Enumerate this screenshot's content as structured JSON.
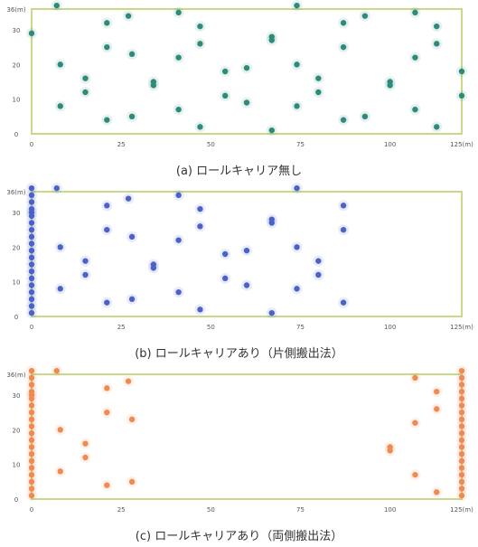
{
  "chart_data": [
    {
      "type": "scatter",
      "caption": "(a) ロールキャリア無し",
      "xlim": [
        0,
        120
      ],
      "ylim": [
        0,
        36
      ],
      "x_ticks": [
        "0",
        "25",
        "50",
        "75",
        "100",
        "125(m)"
      ],
      "y_ticks": [
        "0",
        "10",
        "20",
        "30",
        "36(m)"
      ],
      "frame_color": "#c9d98a",
      "marker_color": "#2e8b7a",
      "points": [
        [
          0,
          29
        ],
        [
          7,
          37
        ],
        [
          8,
          8
        ],
        [
          8,
          20
        ],
        [
          15,
          16
        ],
        [
          15,
          12
        ],
        [
          21,
          32
        ],
        [
          21,
          25
        ],
        [
          21,
          4
        ],
        [
          27,
          34
        ],
        [
          28,
          23
        ],
        [
          28,
          5
        ],
        [
          34,
          14
        ],
        [
          34,
          15
        ],
        [
          41,
          35
        ],
        [
          41,
          22
        ],
        [
          41,
          7
        ],
        [
          47,
          31
        ],
        [
          47,
          26
        ],
        [
          47,
          2
        ],
        [
          54,
          18
        ],
        [
          54,
          11
        ],
        [
          60,
          19
        ],
        [
          60,
          9
        ],
        [
          67,
          28
        ],
        [
          67,
          27
        ],
        [
          67,
          1
        ],
        [
          74,
          37
        ],
        [
          74,
          20
        ],
        [
          74,
          8
        ],
        [
          80,
          16
        ],
        [
          80,
          12
        ],
        [
          87,
          32
        ],
        [
          87,
          25
        ],
        [
          87,
          4
        ],
        [
          93,
          34
        ],
        [
          93,
          5
        ],
        [
          100,
          14
        ],
        [
          100,
          15
        ],
        [
          107,
          35
        ],
        [
          107,
          22
        ],
        [
          107,
          7
        ],
        [
          113,
          31
        ],
        [
          113,
          26
        ],
        [
          113,
          2
        ],
        [
          120,
          18
        ],
        [
          120,
          11
        ]
      ]
    },
    {
      "type": "scatter",
      "caption": "(b) ロールキャリアあり（片側搬出法）",
      "xlim": [
        0,
        120
      ],
      "ylim": [
        0,
        36
      ],
      "x_ticks": [
        "0",
        "25",
        "50",
        "75",
        "100",
        "125(m)"
      ],
      "y_ticks": [
        "0",
        "10",
        "20",
        "30",
        "36(m)"
      ],
      "frame_color": "#c9d98a",
      "marker_color": "#4b63c8",
      "stacked_points": [
        [
          0,
          1
        ],
        [
          0,
          3
        ],
        [
          0,
          5
        ],
        [
          0,
          7
        ],
        [
          0,
          9
        ],
        [
          0,
          11
        ],
        [
          0,
          13
        ],
        [
          0,
          15
        ],
        [
          0,
          17
        ],
        [
          0,
          19
        ],
        [
          0,
          21
        ],
        [
          0,
          23
        ],
        [
          0,
          25
        ],
        [
          0,
          27
        ],
        [
          0,
          29
        ],
        [
          0,
          30
        ],
        [
          0,
          31
        ],
        [
          0,
          33
        ],
        [
          0,
          35
        ],
        [
          0,
          37
        ]
      ],
      "points": [
        [
          7,
          37
        ],
        [
          8,
          8
        ],
        [
          8,
          20
        ],
        [
          15,
          16
        ],
        [
          15,
          12
        ],
        [
          21,
          32
        ],
        [
          21,
          25
        ],
        [
          21,
          4
        ],
        [
          27,
          34
        ],
        [
          28,
          23
        ],
        [
          28,
          5
        ],
        [
          34,
          14
        ],
        [
          34,
          15
        ],
        [
          41,
          35
        ],
        [
          41,
          22
        ],
        [
          41,
          7
        ],
        [
          47,
          31
        ],
        [
          47,
          26
        ],
        [
          47,
          2
        ],
        [
          54,
          18
        ],
        [
          54,
          11
        ],
        [
          60,
          19
        ],
        [
          60,
          9
        ],
        [
          67,
          28
        ],
        [
          67,
          27
        ],
        [
          67,
          1
        ],
        [
          74,
          37
        ],
        [
          74,
          20
        ],
        [
          74,
          8
        ],
        [
          80,
          16
        ],
        [
          80,
          12
        ],
        [
          87,
          32
        ],
        [
          87,
          25
        ],
        [
          87,
          4
        ]
      ]
    },
    {
      "type": "scatter",
      "caption": "(c) ロールキャリアあり（両側搬出法）",
      "xlim": [
        0,
        120
      ],
      "ylim": [
        0,
        36
      ],
      "x_ticks": [
        "0",
        "25",
        "50",
        "75",
        "100",
        "125(m)"
      ],
      "y_ticks": [
        "0",
        "10",
        "20",
        "30",
        "36(m)"
      ],
      "frame_color": "#c9d98a",
      "marker_color": "#ef8a52",
      "stacked_points": [
        [
          0,
          1
        ],
        [
          0,
          3
        ],
        [
          0,
          5
        ],
        [
          0,
          7
        ],
        [
          0,
          9
        ],
        [
          0,
          11
        ],
        [
          0,
          13
        ],
        [
          0,
          15
        ],
        [
          0,
          17
        ],
        [
          0,
          19
        ],
        [
          0,
          21
        ],
        [
          0,
          23
        ],
        [
          0,
          25
        ],
        [
          0,
          27
        ],
        [
          0,
          29
        ],
        [
          0,
          30
        ],
        [
          0,
          31
        ],
        [
          0,
          33
        ],
        [
          0,
          35
        ],
        [
          0,
          37
        ],
        [
          120,
          1
        ],
        [
          120,
          3
        ],
        [
          120,
          5
        ],
        [
          120,
          7
        ],
        [
          120,
          9
        ],
        [
          120,
          11
        ],
        [
          120,
          13
        ],
        [
          120,
          15
        ],
        [
          120,
          17
        ],
        [
          120,
          19
        ],
        [
          120,
          21
        ],
        [
          120,
          23
        ],
        [
          120,
          25
        ],
        [
          120,
          27
        ],
        [
          120,
          29
        ],
        [
          120,
          31
        ],
        [
          120,
          33
        ],
        [
          120,
          35
        ],
        [
          120,
          37
        ]
      ],
      "points": [
        [
          7,
          37
        ],
        [
          8,
          8
        ],
        [
          8,
          20
        ],
        [
          15,
          16
        ],
        [
          15,
          12
        ],
        [
          21,
          32
        ],
        [
          21,
          25
        ],
        [
          21,
          4
        ],
        [
          27,
          34
        ],
        [
          28,
          23
        ],
        [
          28,
          5
        ],
        [
          100,
          14
        ],
        [
          100,
          15
        ],
        [
          107,
          35
        ],
        [
          107,
          22
        ],
        [
          107,
          7
        ],
        [
          113,
          31
        ],
        [
          113,
          26
        ],
        [
          113,
          2
        ]
      ]
    }
  ]
}
